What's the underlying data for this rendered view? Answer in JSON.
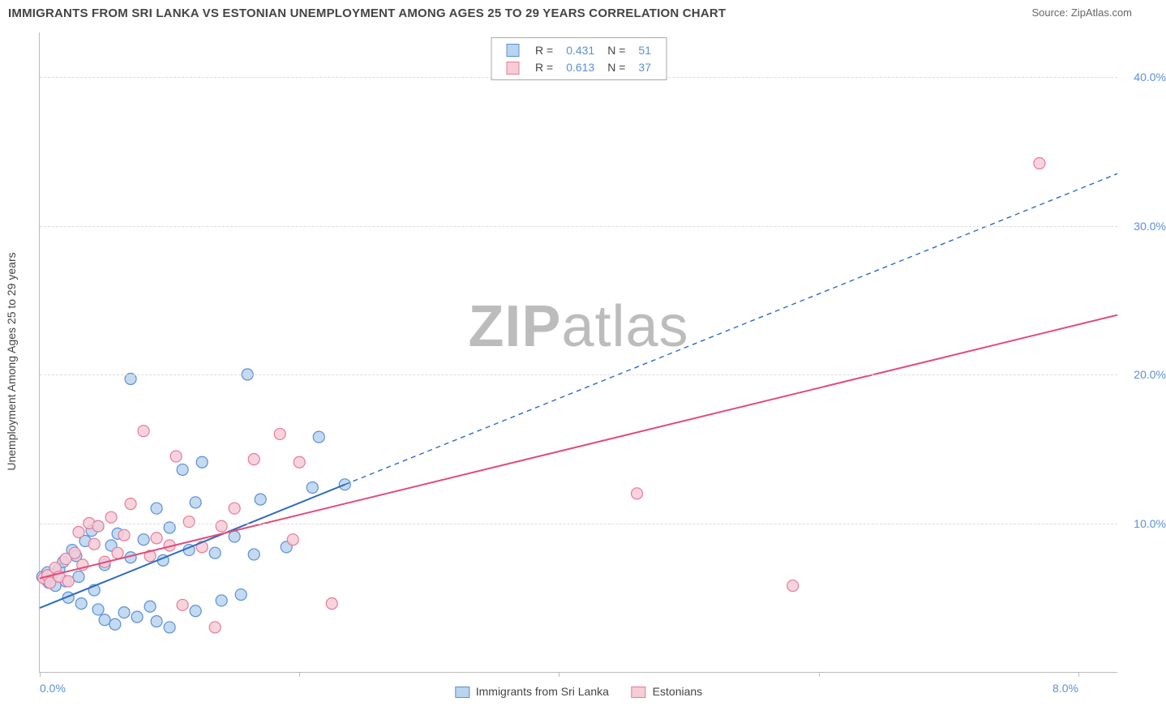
{
  "title": "IMMIGRANTS FROM SRI LANKA VS ESTONIAN UNEMPLOYMENT AMONG AGES 25 TO 29 YEARS CORRELATION CHART",
  "source": "Source: ZipAtlas.com",
  "watermark_zip": "ZIP",
  "watermark_atlas": "atlas",
  "y_axis_label": "Unemployment Among Ages 25 to 29 years",
  "chart": {
    "type": "scatter-with-regression",
    "background_color": "#ffffff",
    "grid_color": "#dddddd",
    "axis_color": "#bbbbbb",
    "text_color": "#444444",
    "tick_label_color": "#5b8fd6",
    "xlim": [
      0,
      8.3
    ],
    "ylim": [
      0,
      43
    ],
    "marker_radius": 7,
    "marker_stroke_width": 1.2,
    "line_width_solid": 2.0,
    "line_width_dashed": 1.4,
    "dash_pattern": "6,5",
    "y_gridlines": [
      10,
      20,
      30,
      40
    ],
    "y_tick_labels": [
      "10.0%",
      "20.0%",
      "30.0%",
      "40.0%"
    ],
    "x_ticks": [
      0,
      2,
      4,
      6,
      8
    ],
    "x_tick_labels": {
      "0": "0.0%",
      "8": "8.0%"
    },
    "series": [
      {
        "name": "Immigrants from Sri Lanka",
        "key": "sri_lanka",
        "fill": "#b9d4ef",
        "stroke": "#5b8fd6",
        "line_color": "#2e6bc0",
        "r": "0.431",
        "n": "51",
        "regression": {
          "x0": 0.0,
          "y0": 4.3,
          "x1": 2.35,
          "y1": 12.6
        },
        "extension_dashed": {
          "x0": 2.35,
          "y0": 12.6,
          "x1": 8.3,
          "y1": 33.5
        },
        "points": [
          [
            0.02,
            6.4
          ],
          [
            0.05,
            6.2
          ],
          [
            0.06,
            6.7
          ],
          [
            0.07,
            6.0
          ],
          [
            0.1,
            6.6
          ],
          [
            0.12,
            5.8
          ],
          [
            0.15,
            6.9
          ],
          [
            0.18,
            7.4
          ],
          [
            0.2,
            6.1
          ],
          [
            0.22,
            5.0
          ],
          [
            0.25,
            8.2
          ],
          [
            0.28,
            7.8
          ],
          [
            0.3,
            6.4
          ],
          [
            0.32,
            4.6
          ],
          [
            0.35,
            8.8
          ],
          [
            0.4,
            9.5
          ],
          [
            0.42,
            5.5
          ],
          [
            0.45,
            4.2
          ],
          [
            0.45,
            9.8
          ],
          [
            0.5,
            7.2
          ],
          [
            0.5,
            3.5
          ],
          [
            0.55,
            8.5
          ],
          [
            0.58,
            3.2
          ],
          [
            0.6,
            9.3
          ],
          [
            0.65,
            4.0
          ],
          [
            0.7,
            7.7
          ],
          [
            0.7,
            19.7
          ],
          [
            0.75,
            3.7
          ],
          [
            0.8,
            8.9
          ],
          [
            0.85,
            4.4
          ],
          [
            0.9,
            3.4
          ],
          [
            0.9,
            11.0
          ],
          [
            0.95,
            7.5
          ],
          [
            1.0,
            9.7
          ],
          [
            1.0,
            3.0
          ],
          [
            1.1,
            13.6
          ],
          [
            1.15,
            8.2
          ],
          [
            1.2,
            11.4
          ],
          [
            1.2,
            4.1
          ],
          [
            1.25,
            14.1
          ],
          [
            1.35,
            8.0
          ],
          [
            1.4,
            4.8
          ],
          [
            1.5,
            9.1
          ],
          [
            1.55,
            5.2
          ],
          [
            1.6,
            20.0
          ],
          [
            1.65,
            7.9
          ],
          [
            1.7,
            11.6
          ],
          [
            1.9,
            8.4
          ],
          [
            2.1,
            12.4
          ],
          [
            2.15,
            15.8
          ],
          [
            2.35,
            12.6
          ]
        ]
      },
      {
        "name": "Estonians",
        "key": "estonians",
        "fill": "#f6cdd7",
        "stroke": "#e67a9a",
        "line_color": "#e24c78",
        "r": "0.613",
        "n": "37",
        "regression": {
          "x0": 0.0,
          "y0": 6.3,
          "x1": 8.3,
          "y1": 24.0
        },
        "points": [
          [
            0.03,
            6.3
          ],
          [
            0.06,
            6.5
          ],
          [
            0.08,
            6.0
          ],
          [
            0.12,
            7.0
          ],
          [
            0.15,
            6.4
          ],
          [
            0.2,
            7.6
          ],
          [
            0.22,
            6.1
          ],
          [
            0.27,
            8.0
          ],
          [
            0.3,
            9.4
          ],
          [
            0.33,
            7.2
          ],
          [
            0.38,
            10.0
          ],
          [
            0.42,
            8.6
          ],
          [
            0.45,
            9.8
          ],
          [
            0.5,
            7.4
          ],
          [
            0.55,
            10.4
          ],
          [
            0.6,
            8.0
          ],
          [
            0.65,
            9.2
          ],
          [
            0.7,
            11.3
          ],
          [
            0.8,
            16.2
          ],
          [
            0.85,
            7.8
          ],
          [
            0.9,
            9.0
          ],
          [
            1.0,
            8.5
          ],
          [
            1.05,
            14.5
          ],
          [
            1.1,
            4.5
          ],
          [
            1.15,
            10.1
          ],
          [
            1.25,
            8.4
          ],
          [
            1.35,
            3.0
          ],
          [
            1.4,
            9.8
          ],
          [
            1.5,
            11.0
          ],
          [
            1.65,
            14.3
          ],
          [
            1.85,
            16.0
          ],
          [
            1.95,
            8.9
          ],
          [
            2.0,
            14.1
          ],
          [
            2.25,
            4.6
          ],
          [
            4.6,
            12.0
          ],
          [
            5.8,
            5.8
          ],
          [
            7.7,
            34.2
          ]
        ]
      }
    ],
    "legend_top": {
      "r_label": "R =",
      "n_label": "N ="
    },
    "legend_bottom": [
      {
        "swatch_key": "sri_lanka",
        "label": "Immigrants from Sri Lanka"
      },
      {
        "swatch_key": "estonians",
        "label": "Estonians"
      }
    ]
  }
}
